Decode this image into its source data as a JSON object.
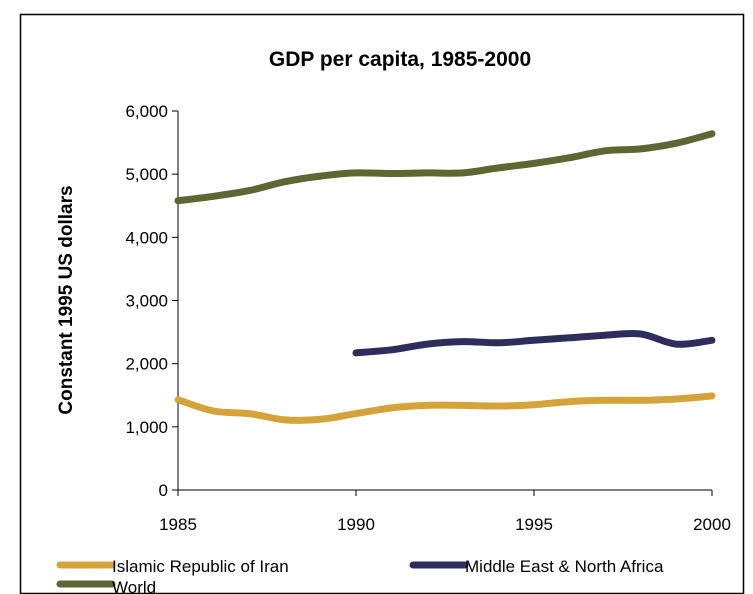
{
  "chart_data": {
    "type": "line",
    "title": "GDP per capita, 1985-2000",
    "xlabel": "",
    "ylabel": "Constant 1995 US dollars",
    "x": [
      1985,
      1986,
      1987,
      1988,
      1989,
      1990,
      1991,
      1992,
      1993,
      1994,
      1995,
      1996,
      1997,
      1998,
      1999,
      2000
    ],
    "xlim": [
      1985,
      2000
    ],
    "ylim": [
      0,
      6000
    ],
    "xticks": [
      1985,
      1990,
      1995,
      2000
    ],
    "xtick_labels": [
      "1985",
      "1990",
      "1995",
      "2000"
    ],
    "yticks": [
      0,
      1000,
      2000,
      3000,
      4000,
      5000,
      6000
    ],
    "ytick_labels": [
      "0",
      "1,000",
      "2,000",
      "3,000",
      "4,000",
      "5,000",
      "6,000"
    ],
    "grid": false,
    "legend_position": "bottom",
    "series": [
      {
        "name": "Islamic Republic of Iran",
        "color": "#d4a43a",
        "values": [
          1430,
          1250,
          1210,
          1110,
          1120,
          1210,
          1300,
          1340,
          1340,
          1330,
          1350,
          1400,
          1420,
          1420,
          1440,
          1490
        ]
      },
      {
        "name": "Middle East & North Africa",
        "color": "#2e2e5c",
        "values": [
          null,
          null,
          null,
          null,
          null,
          2170,
          2220,
          2310,
          2350,
          2330,
          2370,
          2410,
          2450,
          2470,
          2310,
          2370
        ]
      },
      {
        "name": "World",
        "color": "#5e6632",
        "values": [
          4580,
          4650,
          4740,
          4880,
          4970,
          5020,
          5010,
          5020,
          5020,
          5100,
          5170,
          5260,
          5370,
          5400,
          5490,
          5640
        ]
      }
    ]
  }
}
